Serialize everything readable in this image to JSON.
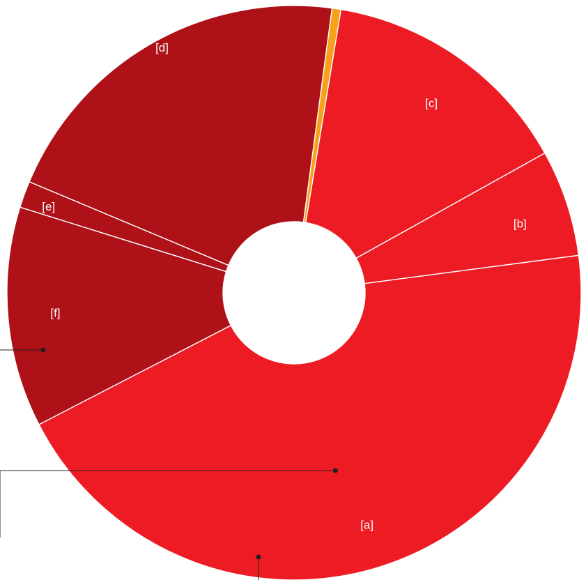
{
  "chart_data": {
    "type": "pie",
    "variant": "donut",
    "slices": [
      {
        "label": "[a]",
        "value": 44.5,
        "color": "#ed1c24"
      },
      {
        "label": "[f]",
        "value": 12.4,
        "color": "#ae1117"
      },
      {
        "label": "[e]",
        "value": 1.5,
        "color": "#ae1117"
      },
      {
        "label": "[d]",
        "value": 20.8,
        "color": "#ae1117"
      },
      {
        "label": "",
        "value": 0.5,
        "color": "#f7a11b"
      },
      {
        "label": "[c]",
        "value": 14.3,
        "color": "#ed1c24"
      },
      {
        "label": "[b]",
        "value": 6.0,
        "color": "#ed1c24"
      }
    ],
    "slice_separator_color": "#ffffff",
    "callout_marker_color": "#231f20"
  }
}
